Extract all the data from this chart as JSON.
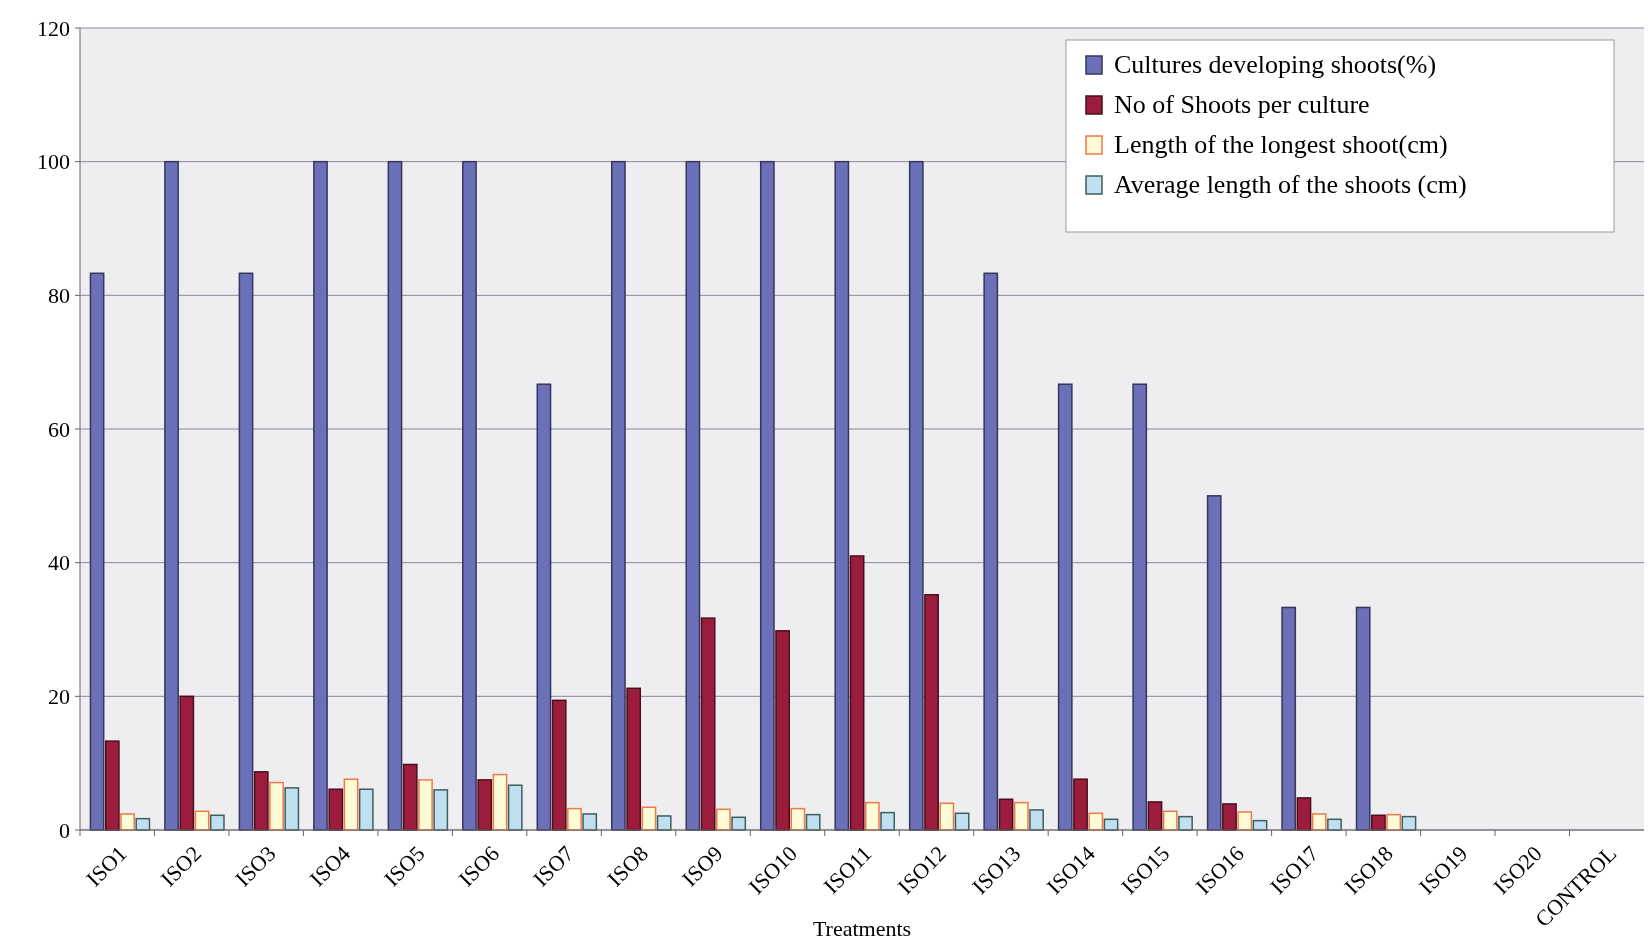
{
  "chart_data": {
    "type": "bar",
    "xlabel": "Treatments",
    "categories": [
      "ISO1",
      "ISO2",
      "ISO3",
      "ISO4",
      "ISO5",
      "ISO6",
      "ISO7",
      "ISO8",
      "ISO9",
      "ISO10",
      "ISO11",
      "ISO12",
      "ISO13",
      "ISO14",
      "ISO15",
      "ISO16",
      "ISO17",
      "ISO18",
      "ISO19",
      "ISO20",
      "CONTROL"
    ],
    "series": [
      {
        "name": "Cultures developing shoots(%)",
        "color": "#6b70b8",
        "values": [
          83.3,
          100,
          83.3,
          100,
          100,
          100,
          66.7,
          100,
          100,
          100,
          100,
          100,
          83.3,
          66.7,
          66.7,
          50,
          33.3,
          33.3,
          0,
          0,
          0
        ]
      },
      {
        "name": "No of Shoots per culture",
        "color": "#9b1c3c",
        "values": [
          13.3,
          20,
          8.7,
          6.1,
          9.8,
          7.5,
          19.4,
          21.2,
          31.7,
          29.8,
          41,
          35.2,
          4.6,
          7.6,
          4.2,
          3.9,
          4.8,
          2.2,
          0,
          0,
          0
        ]
      },
      {
        "name": "Length of the longest shoot(cm)",
        "color": "#fffbd6",
        "values": [
          2.4,
          2.8,
          7.1,
          7.6,
          7.5,
          8.3,
          3.2,
          3.4,
          3.1,
          3.2,
          4.1,
          4,
          4.1,
          2.5,
          2.8,
          2.7,
          2.4,
          2.3,
          0,
          0,
          0
        ]
      },
      {
        "name": "Average length of the shoots (cm)",
        "color": "#c0e0f2",
        "values": [
          1.7,
          2.2,
          6.3,
          6.1,
          6,
          6.7,
          2.4,
          2.1,
          1.9,
          2.3,
          2.6,
          2.5,
          3,
          1.6,
          2,
          1.4,
          1.6,
          2,
          0,
          0,
          0
        ]
      }
    ],
    "ylim": [
      0,
      120
    ],
    "yticks": [
      0,
      20,
      40,
      60,
      80,
      100,
      120
    ],
    "grid": "y",
    "legend": "top right"
  }
}
